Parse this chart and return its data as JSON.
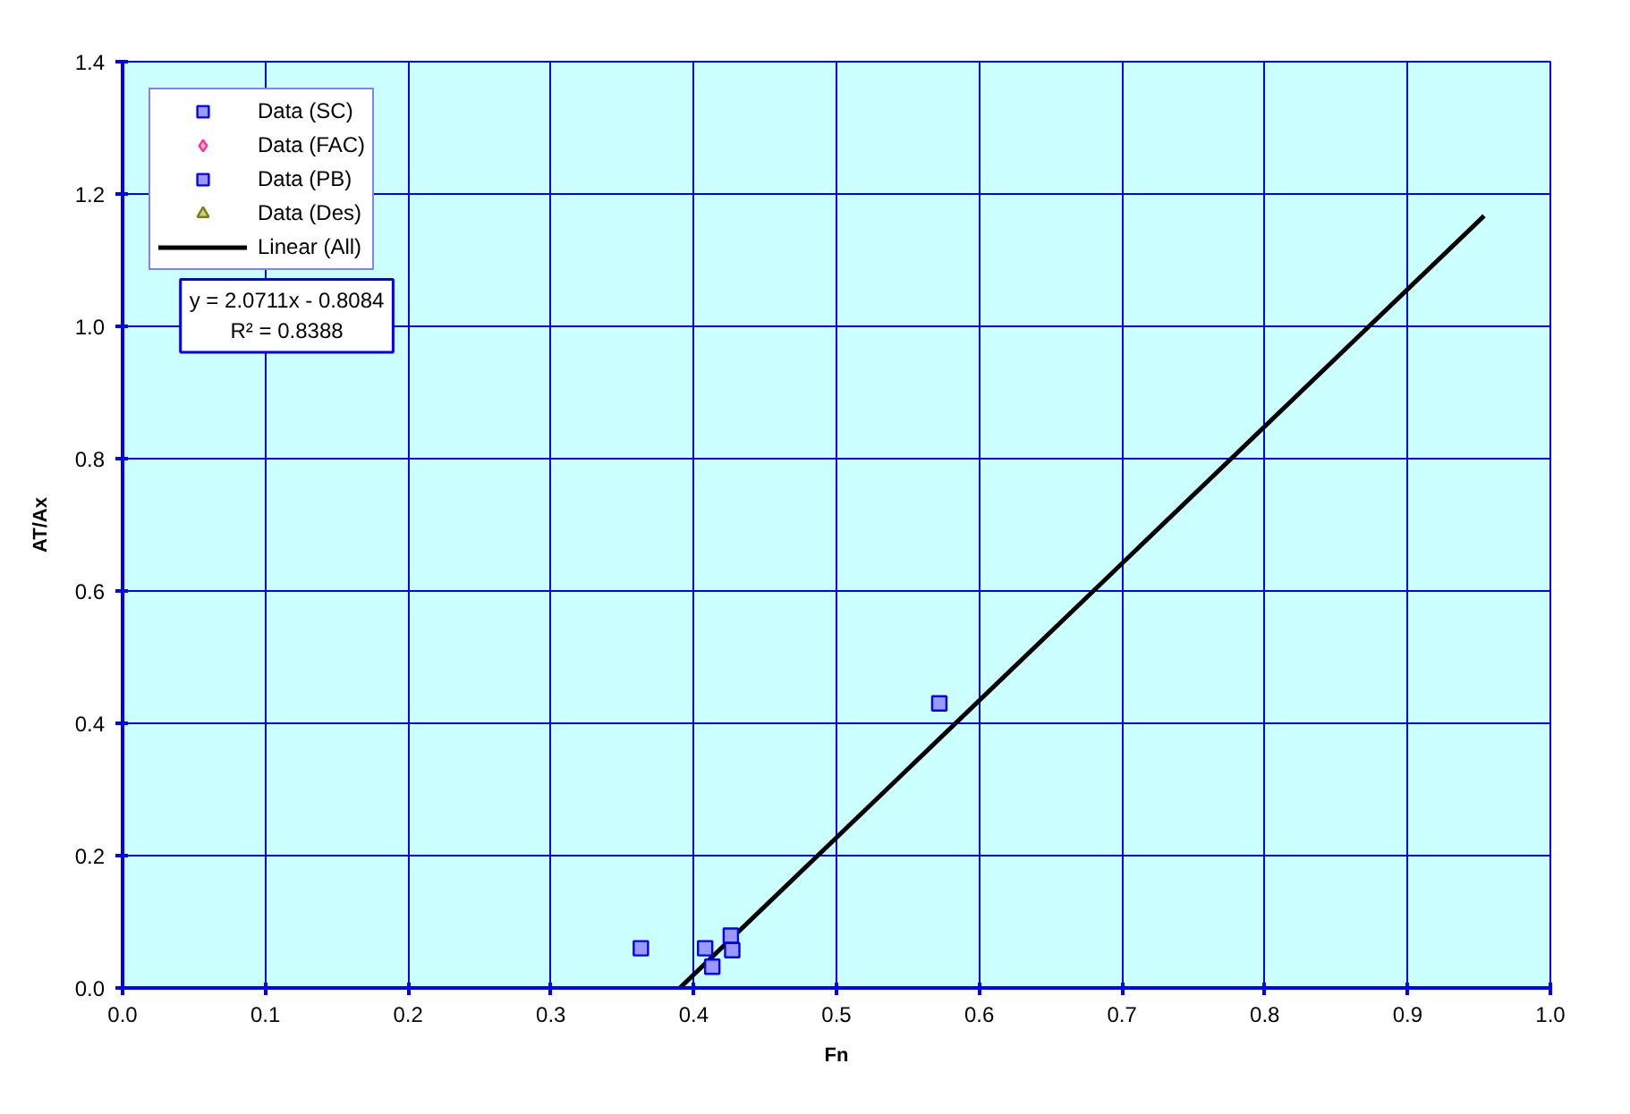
{
  "chart_data": {
    "type": "scatter",
    "xlabel": "Fn",
    "ylabel": "AT/Ax",
    "xlim": [
      0,
      1
    ],
    "ylim": [
      0,
      1.4
    ],
    "xticks": [
      {
        "value": 0,
        "label": "0.0"
      },
      0.1,
      0.2,
      0.3,
      0.4,
      0.5,
      0.6,
      0.7,
      0.8,
      0.9,
      {
        "value": 1,
        "label": "1.0"
      }
    ],
    "yticks": [
      {
        "value": 0,
        "label": "0.0"
      },
      0.2,
      0.4,
      0.6,
      0.8,
      {
        "value": 1,
        "label": "1.0"
      },
      1.2,
      1.4
    ],
    "grid": true,
    "legend": "top left",
    "series": [
      {
        "name": "Data (SC)",
        "marker": "square",
        "color": "#0000ff",
        "x": [
          0.408,
          0.426,
          0.427,
          0.413
        ],
        "values": [
          0.06,
          0.079,
          0.057,
          0.032
        ]
      },
      {
        "name": "Data (FAC)",
        "marker": "diamond",
        "color": "#ff3399"
      },
      {
        "name": "Data (PB)",
        "marker": "square",
        "color": "#0000ff",
        "x": [
          0.363,
          0.572
        ],
        "values": [
          0.06,
          0.43
        ]
      },
      {
        "name": "Data (Des)",
        "marker": "triangle",
        "color": "#808000"
      },
      {
        "name": "Linear (All)",
        "type": "line",
        "color": "#000000",
        "x": [
          0.3903,
          0.9536
        ],
        "values": [
          0,
          1.167
        ]
      }
    ],
    "annotations": [
      "y = 2.0711x - 0.8084",
      "R² = 0.8388"
    ]
  }
}
